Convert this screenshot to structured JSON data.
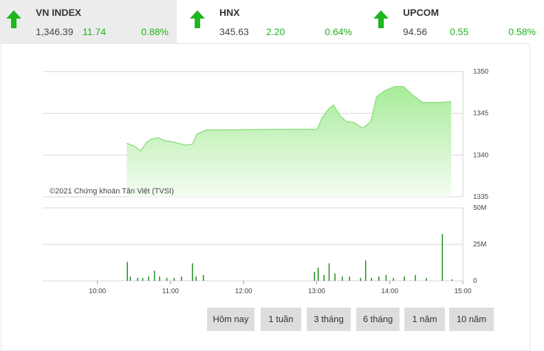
{
  "tickers": [
    {
      "name": "VN INDEX",
      "value": "1,346.39",
      "change": "11.74",
      "percent": "0.88%"
    },
    {
      "name": "HNX",
      "value": "345.63",
      "change": "2.20",
      "percent": "0.64%"
    },
    {
      "name": "UPCOM",
      "value": "94.56",
      "change": "0.55",
      "percent": "0.58%"
    }
  ],
  "chart_data": [
    {
      "type": "area",
      "annotation": "©2021 Chứng khoán Tân Việt (TVSI)",
      "color": "#8fe07e",
      "x": [
        10.4,
        10.5,
        10.59,
        10.67,
        10.73,
        10.83,
        10.92,
        11.02,
        11.11,
        11.2,
        11.3,
        11.36,
        11.49,
        13.01,
        13.07,
        13.16,
        13.23,
        13.32,
        13.41,
        13.51,
        13.63,
        13.74,
        13.82,
        13.93,
        14.07,
        14.19,
        14.31,
        14.45,
        14.68,
        14.84
      ],
      "values": [
        1341.4,
        1341.1,
        1340.5,
        1341.5,
        1341.9,
        1342.1,
        1341.7,
        1341.6,
        1341.4,
        1341.2,
        1341.3,
        1342.5,
        1343.0,
        1343.1,
        1344.4,
        1345.5,
        1346.0,
        1344.7,
        1344.0,
        1343.9,
        1343.2,
        1344.0,
        1347.0,
        1347.7,
        1348.2,
        1348.2,
        1347.2,
        1346.3,
        1346.3,
        1346.4
      ],
      "xlim": [
        9.25,
        15
      ],
      "ylim": [
        1335,
        1350
      ],
      "yticks": [
        1335,
        1340,
        1345,
        1350
      ],
      "grid": true
    },
    {
      "type": "bar",
      "color": "#1a8a1a",
      "x": [
        10.41,
        10.45,
        10.55,
        10.62,
        10.7,
        10.78,
        10.85,
        10.95,
        11.05,
        11.15,
        11.3,
        11.35,
        11.45,
        12.97,
        13.02,
        13.1,
        13.17,
        13.25,
        13.35,
        13.45,
        13.6,
        13.67,
        13.75,
        13.85,
        13.95,
        14.05,
        14.2,
        14.35,
        14.5,
        14.72,
        14.85
      ],
      "values": [
        13,
        3,
        2,
        2,
        3,
        7,
        3,
        2,
        2,
        3,
        12,
        3,
        4,
        6,
        9,
        4,
        12,
        5,
        3,
        3,
        2,
        14,
        2,
        3,
        4,
        2,
        3,
        4,
        2,
        32,
        1
      ],
      "xlim": [
        9.25,
        15
      ],
      "ylim": [
        0,
        50
      ],
      "yticks": [
        0,
        {
          "value": 25,
          "label": "25M"
        },
        {
          "value": 50,
          "label": "50M"
        }
      ],
      "xticks": [
        {
          "value": 10,
          "label": "10:00"
        },
        {
          "value": 11,
          "label": "11:00"
        },
        {
          "value": 12,
          "label": "12:00"
        },
        {
          "value": 13,
          "label": "13:00"
        },
        {
          "value": 14,
          "label": "14:00"
        },
        {
          "value": 15,
          "label": "15:00"
        }
      ],
      "grid": true
    }
  ],
  "buttons": [
    "Hôm nay",
    "1 tuần",
    "3 tháng",
    "6 tháng",
    "1 năm",
    "10 năm"
  ]
}
